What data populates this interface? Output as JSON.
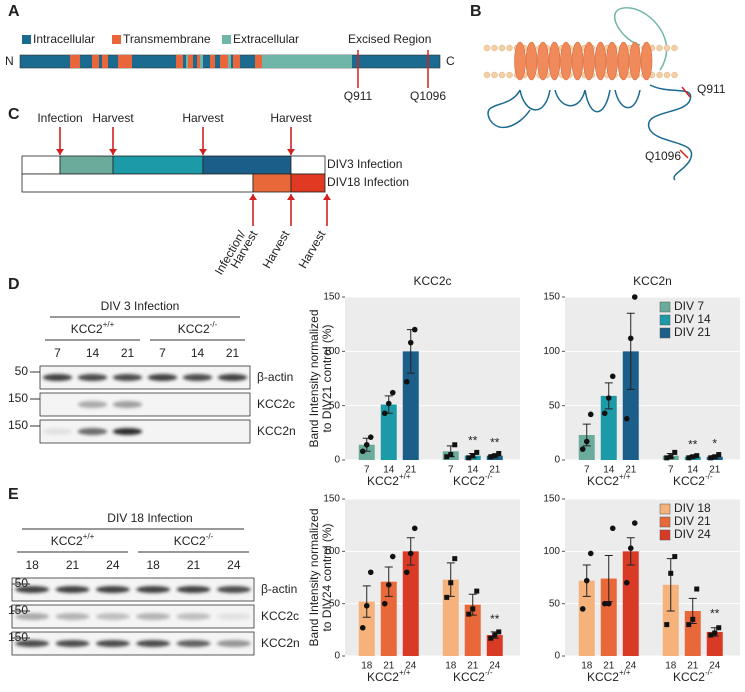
{
  "panel_labels": [
    "A",
    "B",
    "C",
    "D",
    "E"
  ],
  "domain_legend": [
    "Intracellular",
    "Transmembrane",
    "Extracellular",
    "Excised Region"
  ],
  "protein": {
    "n": "N",
    "c": "C",
    "sites": [
      "Q911",
      "Q1096"
    ]
  },
  "topology": {
    "sites": [
      "Q911",
      "Q1096"
    ]
  },
  "timeline": {
    "top": [
      "Infection",
      "Harvest",
      "Harvest",
      "Harvest"
    ],
    "rows": [
      "DIV3 Infection",
      "DIV18 Infection"
    ],
    "bottom": [
      [
        "Infection/",
        "Harvest"
      ],
      [
        "Harvest"
      ],
      [
        "Harvest"
      ]
    ]
  },
  "blots_d": {
    "title": "DIV 3 Infection",
    "genotypes": [
      {
        "name": "KCC2",
        "sup": "+/+"
      },
      {
        "name": "KCC2",
        "sup": "-/-"
      }
    ],
    "lanes": [
      "7",
      "14",
      "21",
      "7",
      "14",
      "21"
    ],
    "markers": [
      "50",
      "150",
      "150"
    ],
    "bands": [
      "β-actin",
      "KCC2c",
      "KCC2n"
    ]
  },
  "blots_e": {
    "title": "DIV 18 Infection",
    "genotypes": [
      {
        "name": "KCC2",
        "sup": "+/+"
      },
      {
        "name": "KCC2",
        "sup": "-/-"
      }
    ],
    "lanes": [
      "18",
      "21",
      "24",
      "18",
      "21",
      "24"
    ],
    "markers": [
      "50",
      "150",
      "150"
    ],
    "bands": [
      "β-actin",
      "KCC2c",
      "KCC2n"
    ]
  },
  "chart_data": [
    {
      "type": "bar",
      "title": "KCC2c",
      "ylabel": [
        "Band Intensity normalized",
        "to DIV21 control (%)"
      ],
      "ylim": [
        0,
        150
      ],
      "yticks": [
        0,
        50,
        100,
        150
      ],
      "groups": [
        {
          "name": "KCC2",
          "sup": "+/+",
          "marker": "circle"
        },
        {
          "name": "KCC2",
          "sup": "-/-",
          "marker": "square"
        }
      ],
      "series": [
        {
          "name": "DIV 7",
          "tick": "7",
          "color": "#6aab9c",
          "values": [
            14,
            8
          ],
          "errors": [
            6,
            5
          ],
          "points": [
            [
              8,
              14,
              21
            ],
            [
              3,
              5,
              14
            ]
          ],
          "significance": [
            null,
            null
          ]
        },
        {
          "name": "DIV 14",
          "tick": "14",
          "color": "#1c9aa8",
          "values": [
            51,
            4
          ],
          "errors": [
            8,
            2
          ],
          "points": [
            [
              43,
              52,
              62
            ],
            [
              2,
              4,
              7
            ]
          ],
          "significance": [
            null,
            "**"
          ]
        },
        {
          "name": "DIV 21",
          "tick": "21",
          "color": "#1b5e89",
          "values": [
            100,
            4
          ],
          "errors": [
            20,
            1
          ],
          "points": [
            [
              72,
              108,
              120
            ],
            [
              3,
              4,
              6
            ]
          ],
          "significance": [
            null,
            "**"
          ]
        }
      ]
    },
    {
      "type": "bar",
      "title": "KCC2n",
      "ylim": [
        0,
        150
      ],
      "yticks": [
        0,
        50,
        100,
        150
      ],
      "legend": "upper right",
      "groups": [
        {
          "name": "KCC2",
          "sup": "+/+",
          "marker": "circle"
        },
        {
          "name": "KCC2",
          "sup": "-/-",
          "marker": "square"
        }
      ],
      "series": [
        {
          "name": "DIV 7",
          "tick": "7",
          "color": "#6aab9c",
          "values": [
            23,
            4
          ],
          "errors": [
            10,
            2
          ],
          "points": [
            [
              10,
              17,
              42
            ],
            [
              2,
              3,
              7
            ]
          ],
          "significance": [
            null,
            null
          ]
        },
        {
          "name": "DIV 14",
          "tick": "14",
          "color": "#1c9aa8",
          "values": [
            59,
            3
          ],
          "errors": [
            12,
            1
          ],
          "points": [
            [
              43,
              57,
              77
            ],
            [
              2,
              3,
              4
            ]
          ],
          "significance": [
            null,
            "**"
          ]
        },
        {
          "name": "DIV 21",
          "tick": "21",
          "color": "#1b5e89",
          "values": [
            100,
            3
          ],
          "errors": [
            35,
            1
          ],
          "points": [
            [
              38,
              112,
              150
            ],
            [
              2,
              3,
              5
            ]
          ],
          "significance": [
            null,
            "*"
          ]
        }
      ]
    },
    {
      "type": "bar",
      "ylabel": [
        "Band Intensity normalized",
        "to DIV24 control (%)"
      ],
      "ylim": [
        0,
        150
      ],
      "yticks": [
        0,
        50,
        100,
        150
      ],
      "groups": [
        {
          "name": "KCC2",
          "sup": "+/+",
          "marker": "circle"
        },
        {
          "name": "KCC2",
          "sup": "-/-",
          "marker": "square"
        }
      ],
      "series": [
        {
          "name": "DIV 18",
          "tick": "18",
          "color": "#f5b27a",
          "values": [
            52,
            73
          ],
          "errors": [
            15,
            16
          ],
          "points": [
            [
              27,
              48,
              80
            ],
            [
              56,
              70,
              93
            ]
          ],
          "significance": [
            null,
            null
          ]
        },
        {
          "name": "DIV 21",
          "tick": "21",
          "color": "#e8683a",
          "values": [
            71,
            49
          ],
          "errors": [
            14,
            10
          ],
          "points": [
            [
              50,
              68,
              95
            ],
            [
              40,
              45,
              62
            ]
          ],
          "significance": [
            null,
            null
          ]
        },
        {
          "name": "DIV 24",
          "tick": "24",
          "color": "#d93a26",
          "values": [
            100,
            20
          ],
          "errors": [
            13,
            3
          ],
          "points": [
            [
              80,
              98,
              122
            ],
            [
              17,
              20,
              23
            ]
          ],
          "significance": [
            null,
            "**"
          ]
        }
      ]
    },
    {
      "type": "bar",
      "ylim": [
        0,
        150
      ],
      "yticks": [
        0,
        50,
        100,
        150
      ],
      "legend": "upper right",
      "groups": [
        {
          "name": "KCC2",
          "sup": "+/+",
          "marker": "circle"
        },
        {
          "name": "KCC2",
          "sup": "-/-",
          "marker": "square"
        }
      ],
      "series": [
        {
          "name": "DIV 18",
          "tick": "18",
          "color": "#f5b27a",
          "values": [
            72,
            68
          ],
          "errors": [
            15,
            25
          ],
          "points": [
            [
              45,
              72,
              98
            ],
            [
              30,
              79,
              95
            ]
          ],
          "significance": [
            null,
            null
          ]
        },
        {
          "name": "DIV 21",
          "tick": "21",
          "color": "#e8683a",
          "values": [
            74,
            43
          ],
          "errors": [
            22,
            12
          ],
          "points": [
            [
              50,
              50,
              122
            ],
            [
              30,
              35,
              64
            ]
          ],
          "significance": [
            null,
            null
          ]
        },
        {
          "name": "DIV 24",
          "tick": "24",
          "color": "#d93a26",
          "values": [
            100,
            23
          ],
          "errors": [
            13,
            4
          ],
          "points": [
            [
              70,
              103,
              127
            ],
            [
              20,
              22,
              27
            ]
          ],
          "significance": [
            null,
            "**"
          ]
        }
      ]
    }
  ]
}
